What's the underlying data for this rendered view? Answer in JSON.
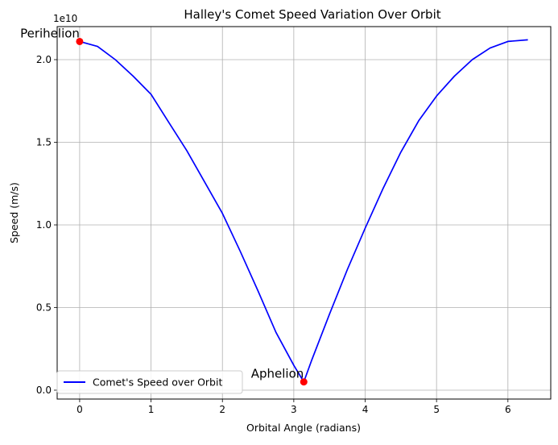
{
  "chart_data": {
    "type": "line",
    "title": "Halley's Comet Speed Variation Over Orbit",
    "xlabel": "Orbital Angle (radians)",
    "ylabel": "Speed (m/s)",
    "y_offset_label": "1e10",
    "xlim": [
      -0.315,
      6.6
    ],
    "ylim": [
      -0.0537,
      2.2
    ],
    "x_ticks": [
      0,
      1,
      2,
      3,
      4,
      5,
      6
    ],
    "x_tick_labels": [
      "0",
      "1",
      "2",
      "3",
      "4",
      "5",
      "6"
    ],
    "y_ticks": [
      0.0,
      0.5,
      1.0,
      1.5,
      2.0
    ],
    "y_tick_labels": [
      "0.0",
      "0.5",
      "1.0",
      "1.5",
      "2.0"
    ],
    "grid": true,
    "legend_position": "lower-left",
    "series": [
      {
        "name": "Comet's Speed over Orbit",
        "color": "#0000ff",
        "x": [
          0,
          0.25,
          0.5,
          0.75,
          1.0,
          1.25,
          1.5,
          1.75,
          2.0,
          2.25,
          2.5,
          2.75,
          3.0,
          3.14,
          3.25,
          3.5,
          3.75,
          4.0,
          4.25,
          4.5,
          4.75,
          5.0,
          5.25,
          5.5,
          5.75,
          6.0,
          6.28
        ],
        "y": [
          2.11,
          2.08,
          2.0,
          1.9,
          1.79,
          1.62,
          1.45,
          1.26,
          1.07,
          0.84,
          0.6,
          0.35,
          0.15,
          0.05,
          0.18,
          0.46,
          0.73,
          0.98,
          1.22,
          1.44,
          1.63,
          1.78,
          1.9,
          2.0,
          2.07,
          2.11,
          2.12
        ]
      }
    ],
    "points": [
      {
        "label": "Perihelion",
        "x": 0,
        "y": 2.11,
        "color": "#ff0000"
      },
      {
        "label": "Aphelion",
        "x": 3.14,
        "y": 0.05,
        "color": "#ff0000"
      }
    ]
  }
}
